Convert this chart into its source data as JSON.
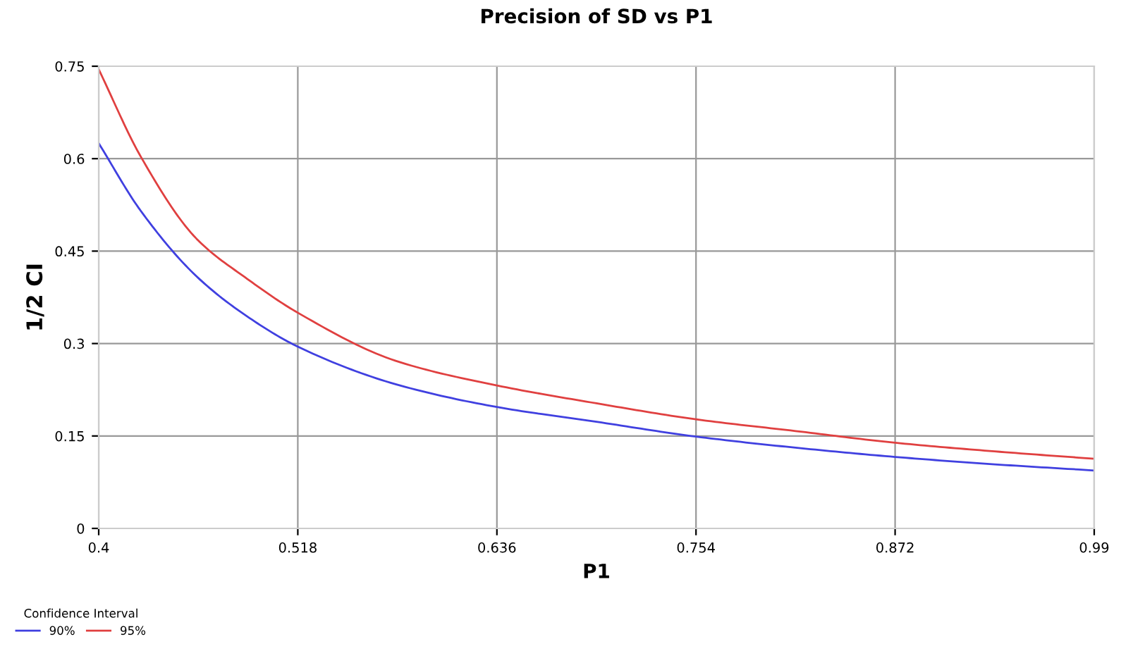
{
  "chart_data": {
    "type": "line",
    "title": "Precision of SD vs P1",
    "xlabel": "P1",
    "ylabel": "1/2 CI",
    "legend_title": "Confidence Interval",
    "x": [
      0.4,
      0.425,
      0.458,
      0.488,
      0.518,
      0.576,
      0.636,
      0.695,
      0.754,
      0.813,
      0.872,
      0.931,
      0.99
    ],
    "series": [
      {
        "name": "90%",
        "color": "#4040e0",
        "values": [
          0.625,
          0.515,
          0.409,
          0.344,
          0.295,
          0.234,
          0.197,
          0.173,
          0.149,
          0.131,
          0.116,
          0.104,
          0.094
        ]
      },
      {
        "name": "95%",
        "color": "#e04040",
        "values": [
          0.745,
          0.603,
          0.47,
          0.405,
          0.35,
          0.272,
          0.232,
          0.203,
          0.177,
          0.158,
          0.139,
          0.125,
          0.113
        ]
      }
    ],
    "xlim": [
      0.4,
      0.99
    ],
    "ylim": [
      0,
      0.75
    ],
    "xticks": [
      0.4,
      0.518,
      0.636,
      0.754,
      0.872,
      0.99
    ],
    "yticks": [
      0,
      0.15,
      0.3,
      0.45,
      0.6,
      0.75
    ],
    "grid": true,
    "legend": "bottom left",
    "marker": "none",
    "line_style": "solid"
  }
}
